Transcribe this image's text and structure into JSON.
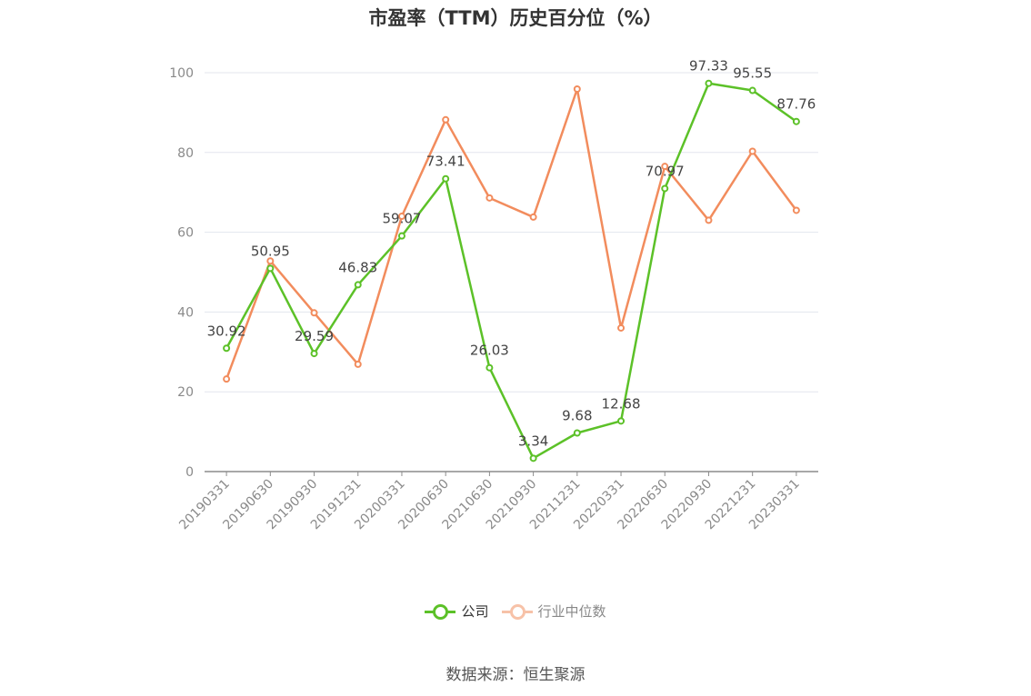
{
  "chart_data": {
    "type": "line",
    "title": "市盈率（TTM）历史百分位（%）",
    "categories": [
      "20190331",
      "20190630",
      "20190930",
      "20191231",
      "20200331",
      "20200630",
      "20210630",
      "20210930",
      "20211231",
      "20220331",
      "20220630",
      "20220930",
      "20221231",
      "20230331"
    ],
    "series": [
      {
        "name": "公司",
        "color": "#5cc128",
        "values": [
          30.92,
          50.95,
          29.59,
          46.83,
          59.07,
          73.41,
          26.03,
          3.34,
          9.68,
          12.68,
          70.97,
          97.33,
          95.55,
          87.76
        ],
        "show_labels": true
      },
      {
        "name": "行业中位数",
        "color": "#f28c5d",
        "values": [
          23.2,
          52.8,
          39.8,
          26.9,
          64.0,
          88.2,
          68.6,
          63.8,
          95.9,
          36.0,
          76.5,
          63.0,
          80.3,
          65.5
        ],
        "show_labels": false
      }
    ],
    "yticks": [
      0,
      20,
      40,
      60,
      80,
      100
    ],
    "ylim": [
      0,
      100
    ],
    "grid": true,
    "legend_position": "bottom"
  },
  "source": "数据来源：恒生聚源"
}
